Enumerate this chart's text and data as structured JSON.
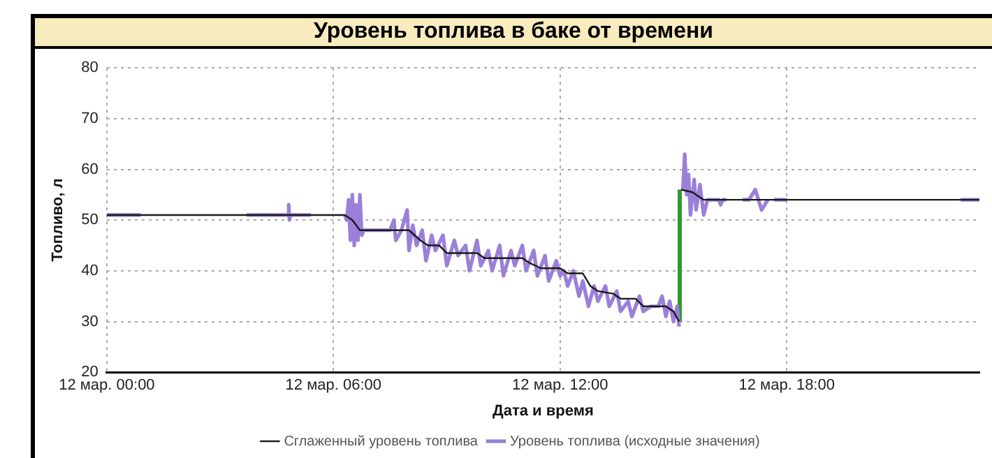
{
  "chart_data": {
    "type": "line",
    "title": "Уровень топлива в баке от времени",
    "xlabel": "Дата и время",
    "ylabel": "Топливо, л",
    "xlim": [
      "--03-12T00:00",
      "--03-12T23:06"
    ],
    "xticks": [
      {
        "value": "--03-12T00:00",
        "label": "12 мар. 00:00"
      },
      {
        "value": "--03-12T06:00",
        "label": "12 мар. 06:00"
      },
      {
        "value": "--03-12T12:00",
        "label": "12 мар. 12:00"
      },
      {
        "value": "--03-12T18:00",
        "label": "12 мар. 18:00"
      }
    ],
    "ylim": [
      20,
      80
    ],
    "yticks": [
      20,
      30,
      40,
      50,
      60,
      70,
      80
    ],
    "grid": true,
    "legend": "bottom",
    "line_style": "solid",
    "series": [
      {
        "name": "Сглаженный уровень топлива",
        "color": "#1a1a1a",
        "x": [
          "--03-12T00:00",
          "--03-12T06:18",
          "--03-12T06:30",
          "--03-12T06:42",
          "--03-12T08:00",
          "--03-12T08:18",
          "--03-12T08:30",
          "--03-12T08:48",
          "--03-12T09:00",
          "--03-12T09:48",
          "--03-12T10:00",
          "--03-12T11:00",
          "--03-12T11:12",
          "--03-12T11:30",
          "--03-12T12:00",
          "--03-12T12:12",
          "--03-12T12:36",
          "--03-12T12:48",
          "--03-12T13:00",
          "--03-12T13:24",
          "--03-12T13:36",
          "--03-12T14:00",
          "--03-12T14:12",
          "--03-12T14:48",
          "--03-12T15:00",
          "--03-12T15:09",
          "--03-12T15:10",
          "--03-12T15:12",
          "--03-12T15:30",
          "--03-12T15:48",
          "--03-12T23:06"
        ],
        "values": [
          51,
          51,
          50,
          48,
          48,
          46,
          45,
          45,
          43.5,
          43.5,
          42.5,
          42.5,
          41.5,
          40.5,
          40.5,
          39.5,
          39.5,
          37,
          36,
          35.5,
          34.5,
          34.5,
          33,
          33,
          32,
          30,
          null,
          56,
          55.5,
          54,
          54
        ]
      },
      {
        "name": "Уровень топлива (исходные значения)",
        "color": "#9b7fd8",
        "x": [
          "--03-12T00:00",
          "--03-12T00:54",
          "--03-12T02:00",
          "--03-12T03:42",
          "--03-12T04:48",
          "--03-12T04:49",
          "--03-12T04:50",
          "--03-12T04:52",
          "--03-12T05:24",
          "--03-12T05:48",
          "--03-12T06:18",
          "--03-12T06:21",
          "--03-12T06:24",
          "--03-12T06:27",
          "--03-12T06:30",
          "--03-12T06:33",
          "--03-12T06:36",
          "--03-12T06:39",
          "--03-12T06:42",
          "--03-12T06:45",
          "--03-12T06:48",
          "--03-12T07:12",
          "--03-12T07:30",
          "--03-12T07:36",
          "--03-12T07:39",
          "--03-12T07:48",
          "--03-12T07:57",
          "--03-12T08:00",
          "--03-12T08:06",
          "--03-12T08:12",
          "--03-12T08:21",
          "--03-12T08:27",
          "--03-12T08:36",
          "--03-12T08:42",
          "--03-12T08:54",
          "--03-12T09:00",
          "--03-12T09:12",
          "--03-12T09:18",
          "--03-12T09:30",
          "--03-12T09:36",
          "--03-12T09:48",
          "--03-12T09:54",
          "--03-12T10:06",
          "--03-12T10:12",
          "--03-12T10:24",
          "--03-12T10:30",
          "--03-12T10:42",
          "--03-12T10:48",
          "--03-12T11:00",
          "--03-12T11:06",
          "--03-12T11:18",
          "--03-12T11:24",
          "--03-12T11:36",
          "--03-12T11:42",
          "--03-12T11:54",
          "--03-12T12:00",
          "--03-12T12:06",
          "--03-12T12:12",
          "--03-12T12:21",
          "--03-12T12:30",
          "--03-12T12:36",
          "--03-12T12:45",
          "--03-12T12:54",
          "--03-12T13:00",
          "--03-12T13:12",
          "--03-12T13:18",
          "--03-12T13:30",
          "--03-12T13:36",
          "--03-12T13:48",
          "--03-12T13:54",
          "--03-12T14:06",
          "--03-12T14:12",
          "--03-12T14:24",
          "--03-12T14:36",
          "--03-12T14:42",
          "--03-12T14:48",
          "--03-12T14:54",
          "--03-12T15:00",
          "--03-12T15:06",
          "--03-12T15:09",
          "--03-12T15:12",
          "--03-12T15:15",
          "--03-12T15:18",
          "--03-12T15:21",
          "--03-12T15:24",
          "--03-12T15:27",
          "--03-12T15:33",
          "--03-12T15:36",
          "--03-12T15:42",
          "--03-12T15:48",
          "--03-12T15:54",
          "--03-12T16:00",
          "--03-12T16:12",
          "--03-12T16:15",
          "--03-12T16:18",
          "--03-12T16:24",
          "--03-12T16:27",
          "--03-12T16:50",
          "--03-12T17:00",
          "--03-12T17:10",
          "--03-12T17:20",
          "--03-12T17:30",
          "--03-12T17:36",
          "--03-12T17:40",
          "--03-12T18:00",
          "--03-12T18:03",
          "--03-12T22:36",
          "--03-12T23:06"
        ],
        "values": [
          51,
          51,
          null,
          51,
          51,
          53,
          50,
          51,
          51,
          null,
          51,
          50,
          54,
          46,
          55,
          45,
          53,
          46,
          55,
          47,
          48,
          48,
          48,
          50,
          46,
          48,
          52,
          44,
          49,
          45,
          48,
          42,
          47,
          44,
          47,
          41,
          46,
          43,
          45,
          40,
          46,
          41,
          44,
          40,
          45,
          39,
          44,
          41,
          45,
          40,
          44,
          39,
          43,
          38,
          42,
          39,
          40,
          37,
          40,
          35,
          38,
          33,
          37,
          34,
          37,
          33,
          36,
          32,
          34,
          31,
          35,
          32,
          33,
          33,
          35,
          31,
          34,
          30,
          33,
          29,
          null,
          56,
          63,
          55,
          59,
          51,
          58,
          52,
          57,
          51,
          54,
          54,
          54,
          53,
          54,
          54,
          null,
          54,
          54,
          56,
          52,
          54,
          null,
          54,
          54,
          null,
          54,
          54
        ]
      },
      {
        "color": "#2e9a2e",
        "x": [
          "--03-12T15:10",
          "--03-12T15:10"
        ],
        "values": [
          30,
          56
        ]
      }
    ]
  }
}
